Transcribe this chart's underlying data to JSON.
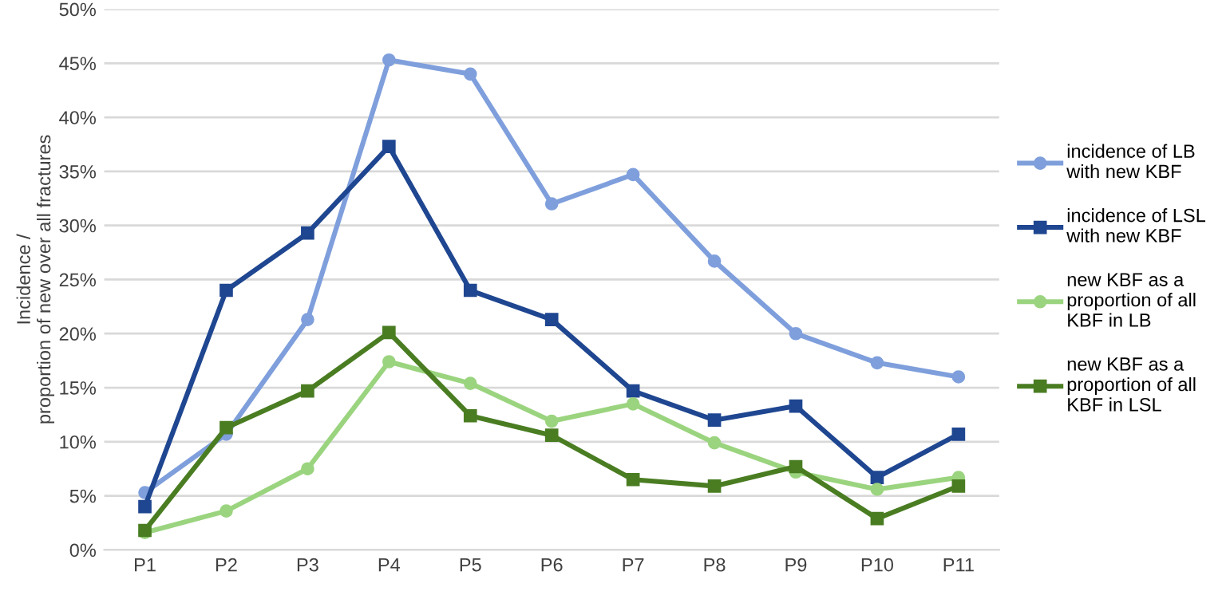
{
  "chart_data": {
    "type": "line",
    "ylabel": "Incidence /\nproportion of new over all fractures",
    "categories": [
      "P1",
      "P2",
      "P3",
      "P4",
      "P5",
      "P6",
      "P7",
      "P8",
      "P9",
      "P10",
      "P11"
    ],
    "series": [
      {
        "name": "incidence of LB\nwith new KBF",
        "color": "#7f9fdc",
        "marker": "circle",
        "values": [
          5.3,
          10.7,
          21.3,
          45.3,
          44.0,
          32.0,
          34.7,
          26.7,
          20.0,
          17.3,
          16.0
        ]
      },
      {
        "name": "incidence of LSL\nwith new KBF",
        "color": "#1f4690",
        "marker": "square",
        "values": [
          4.0,
          24.0,
          29.3,
          37.3,
          24.0,
          21.3,
          14.7,
          12.0,
          13.3,
          6.7,
          10.7
        ]
      },
      {
        "name": "new KBF as a\nproportion of all\nKBF in LB",
        "color": "#9bd47f",
        "marker": "circle",
        "values": [
          1.6,
          3.6,
          7.5,
          17.4,
          15.4,
          11.9,
          13.5,
          9.9,
          7.2,
          5.6,
          6.7
        ]
      },
      {
        "name": "new KBF as a\nproportion of all\nKBF in LSL",
        "color": "#4a7d22",
        "marker": "square",
        "values": [
          1.8,
          11.3,
          14.7,
          20.1,
          12.4,
          10.6,
          6.5,
          5.9,
          7.7,
          2.9,
          5.9
        ]
      }
    ],
    "ylim": [
      0,
      50
    ],
    "yticks": [
      {
        "value": 0,
        "label": "0%"
      },
      {
        "value": 5,
        "label": "5%"
      },
      {
        "value": 10,
        "label": "10%"
      },
      {
        "value": 15,
        "label": "15%"
      },
      {
        "value": 20,
        "label": "20%"
      },
      {
        "value": 25,
        "label": "25%"
      },
      {
        "value": 30,
        "label": "30%"
      },
      {
        "value": 35,
        "label": "35%"
      },
      {
        "value": 40,
        "label": "40%"
      },
      {
        "value": 45,
        "label": "45%"
      },
      {
        "value": 50,
        "label": "50%"
      }
    ],
    "grid": "y",
    "legend": "right",
    "line_style": "solid"
  }
}
